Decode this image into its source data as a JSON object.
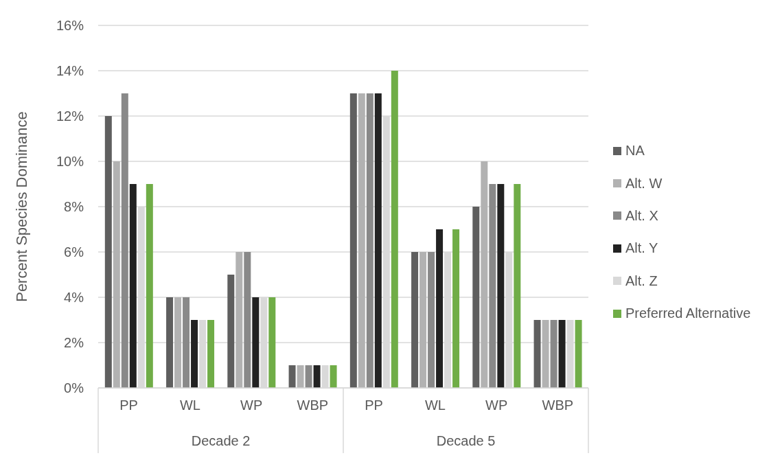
{
  "chart_data": {
    "type": "bar",
    "categories": [
      "PP",
      "WL",
      "WP",
      "WBP",
      "PP",
      "WL",
      "WP",
      "WBP"
    ],
    "annotations": [
      "Decade 2",
      "Decade 5"
    ],
    "ylabel": "Percent Species Dominance",
    "ylim": [
      0,
      16
    ],
    "yticks": [
      {
        "value": 0,
        "label": "0%"
      },
      {
        "value": 2,
        "label": "2%"
      },
      {
        "value": 4,
        "label": "4%"
      },
      {
        "value": 6,
        "label": "6%"
      },
      {
        "value": 8,
        "label": "8%"
      },
      {
        "value": 10,
        "label": "10%"
      },
      {
        "value": 12,
        "label": "12%"
      },
      {
        "value": 14,
        "label": "14%"
      },
      {
        "value": 16,
        "label": "16%"
      }
    ],
    "grid": "y",
    "legend": "right",
    "series": [
      {
        "name": "NA",
        "color": "#5f5f5f",
        "values": [
          12,
          4,
          5,
          1,
          13,
          6,
          8,
          3
        ]
      },
      {
        "name": "Alt. W",
        "color": "#b2b2b2",
        "values": [
          10,
          4,
          6,
          1,
          13,
          6,
          10,
          3
        ]
      },
      {
        "name": "Alt. X",
        "color": "#898989",
        "values": [
          13,
          4,
          6,
          1,
          13,
          6,
          9,
          3
        ]
      },
      {
        "name": "Alt. Y",
        "color": "#222222",
        "values": [
          9,
          3,
          4,
          1,
          13,
          7,
          9,
          3
        ]
      },
      {
        "name": "Alt. Z",
        "color": "#d9d9d9",
        "values": [
          8,
          3,
          4,
          1,
          12,
          6,
          6,
          3
        ]
      },
      {
        "name": "Preferred Alternative",
        "color": "#70ad47",
        "values": [
          9,
          3,
          4,
          1,
          14,
          7,
          9,
          3
        ]
      }
    ]
  }
}
